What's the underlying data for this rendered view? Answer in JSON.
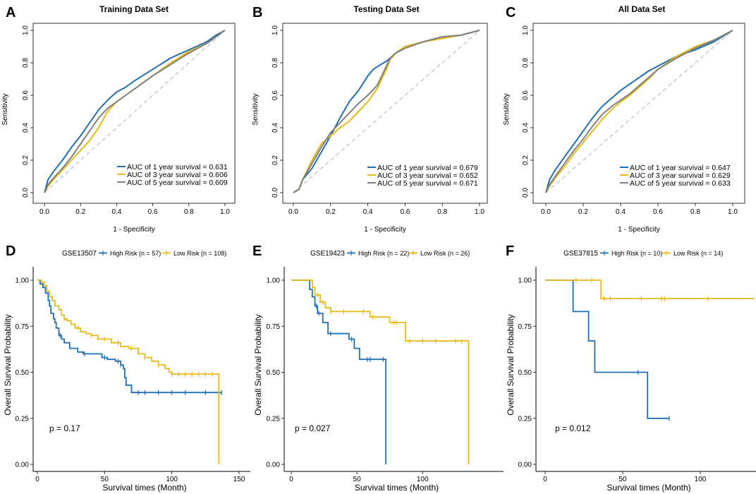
{
  "colors": {
    "blue": "#1f6fb4",
    "gold": "#e8b917",
    "gray": "#808080",
    "diag": "#c8c8c8"
  },
  "chart_data": [
    {
      "panel": "A",
      "type": "line",
      "title": "Training Data Set",
      "xlabel": "1 - Specificity",
      "ylabel": "Sensitivity",
      "xlim": [
        0,
        1
      ],
      "ylim": [
        0,
        1
      ],
      "ticks": [
        "0.0",
        "0.2",
        "0.4",
        "0.6",
        "0.8",
        "1.0"
      ],
      "legend": [
        "AUC of 1 year survival = 0.631",
        "AUC of 3 year survival = 0.606",
        "AUC of 5 year survival = 0.609"
      ],
      "series": [
        {
          "name": "1 year",
          "color": "blue",
          "x": [
            0,
            0.02,
            0.05,
            0.1,
            0.15,
            0.2,
            0.25,
            0.3,
            0.35,
            0.4,
            0.45,
            0.5,
            0.6,
            0.7,
            0.8,
            0.9,
            0.95,
            1
          ],
          "y": [
            0,
            0.08,
            0.13,
            0.2,
            0.28,
            0.35,
            0.43,
            0.51,
            0.57,
            0.62,
            0.65,
            0.69,
            0.76,
            0.83,
            0.88,
            0.93,
            0.97,
            1
          ]
        },
        {
          "name": "3 year",
          "color": "gold",
          "x": [
            0,
            0.02,
            0.05,
            0.1,
            0.15,
            0.2,
            0.25,
            0.3,
            0.35,
            0.4,
            0.45,
            0.5,
            0.6,
            0.7,
            0.8,
            0.9,
            0.95,
            1
          ],
          "y": [
            0,
            0.04,
            0.08,
            0.14,
            0.2,
            0.26,
            0.32,
            0.4,
            0.5,
            0.56,
            0.6,
            0.64,
            0.72,
            0.8,
            0.87,
            0.92,
            0.96,
            1
          ]
        },
        {
          "name": "5 year",
          "color": "gray",
          "x": [
            0,
            0.02,
            0.05,
            0.1,
            0.15,
            0.2,
            0.25,
            0.3,
            0.35,
            0.4,
            0.45,
            0.5,
            0.6,
            0.7,
            0.8,
            0.9,
            0.95,
            1
          ],
          "y": [
            0,
            0.05,
            0.09,
            0.15,
            0.22,
            0.3,
            0.38,
            0.46,
            0.52,
            0.56,
            0.6,
            0.64,
            0.72,
            0.79,
            0.86,
            0.92,
            0.96,
            1
          ]
        }
      ]
    },
    {
      "panel": "B",
      "type": "line",
      "title": "Testing Data Set",
      "xlabel": "1 - Specificity",
      "ylabel": "Sensitivity",
      "xlim": [
        0,
        1
      ],
      "ylim": [
        0,
        1
      ],
      "ticks": [
        "0.0",
        "0.2",
        "0.4",
        "0.6",
        "0.8",
        "1.0"
      ],
      "legend": [
        "AUC of 1 year survival = 0.679",
        "AUC of 3 year survival = 0.652",
        "AUC of 5 year survival = 0.671"
      ],
      "series": [
        {
          "name": "1 year",
          "color": "blue",
          "x": [
            0,
            0.03,
            0.05,
            0.1,
            0.15,
            0.2,
            0.25,
            0.3,
            0.35,
            0.4,
            0.43,
            0.47,
            0.5,
            0.55,
            0.6,
            0.7,
            0.8,
            0.9,
            1
          ],
          "y": [
            0,
            0.02,
            0.08,
            0.15,
            0.25,
            0.35,
            0.46,
            0.56,
            0.63,
            0.72,
            0.76,
            0.79,
            0.81,
            0.86,
            0.9,
            0.93,
            0.96,
            0.97,
            1
          ]
        },
        {
          "name": "3 year",
          "color": "gold",
          "x": [
            0,
            0.03,
            0.05,
            0.1,
            0.15,
            0.2,
            0.25,
            0.3,
            0.35,
            0.4,
            0.45,
            0.5,
            0.52,
            0.55,
            0.6,
            0.7,
            0.8,
            0.9,
            1
          ],
          "y": [
            0,
            0.02,
            0.08,
            0.2,
            0.3,
            0.35,
            0.4,
            0.44,
            0.5,
            0.56,
            0.64,
            0.76,
            0.82,
            0.86,
            0.9,
            0.93,
            0.95,
            0.97,
            1
          ]
        },
        {
          "name": "5 year",
          "color": "gray",
          "x": [
            0,
            0.03,
            0.05,
            0.1,
            0.15,
            0.2,
            0.25,
            0.3,
            0.35,
            0.4,
            0.45,
            0.5,
            0.52,
            0.55,
            0.6,
            0.7,
            0.8,
            0.9,
            1
          ],
          "y": [
            0,
            0.02,
            0.08,
            0.18,
            0.28,
            0.37,
            0.43,
            0.49,
            0.55,
            0.6,
            0.66,
            0.78,
            0.83,
            0.86,
            0.89,
            0.93,
            0.96,
            0.97,
            1
          ]
        }
      ]
    },
    {
      "panel": "C",
      "type": "line",
      "title": "All Data Set",
      "xlabel": "1 - Specificity",
      "ylabel": "Sensitivity",
      "xlim": [
        0,
        1
      ],
      "ylim": [
        0,
        1
      ],
      "ticks": [
        "0.0",
        "0.2",
        "0.4",
        "0.6",
        "0.8",
        "1.0"
      ],
      "legend": [
        "AUC of 1 year survival = 0.647",
        "AUC of 3 year survival = 0.629",
        "AUC of 5 year survival = 0.633"
      ],
      "series": [
        {
          "name": "1 year",
          "color": "blue",
          "x": [
            0,
            0.02,
            0.05,
            0.1,
            0.15,
            0.2,
            0.25,
            0.3,
            0.35,
            0.4,
            0.45,
            0.5,
            0.55,
            0.6,
            0.7,
            0.8,
            0.9,
            1
          ],
          "y": [
            0,
            0.08,
            0.14,
            0.22,
            0.3,
            0.38,
            0.46,
            0.53,
            0.58,
            0.63,
            0.67,
            0.71,
            0.75,
            0.78,
            0.84,
            0.88,
            0.93,
            1
          ]
        },
        {
          "name": "3 year",
          "color": "gold",
          "x": [
            0,
            0.02,
            0.05,
            0.1,
            0.15,
            0.2,
            0.25,
            0.3,
            0.35,
            0.4,
            0.45,
            0.5,
            0.55,
            0.6,
            0.7,
            0.8,
            0.9,
            1
          ],
          "y": [
            0,
            0.04,
            0.09,
            0.16,
            0.24,
            0.31,
            0.38,
            0.45,
            0.51,
            0.56,
            0.6,
            0.65,
            0.7,
            0.76,
            0.84,
            0.9,
            0.94,
            1
          ]
        },
        {
          "name": "5 year",
          "color": "gray",
          "x": [
            0,
            0.02,
            0.05,
            0.1,
            0.15,
            0.2,
            0.25,
            0.3,
            0.35,
            0.4,
            0.45,
            0.5,
            0.55,
            0.6,
            0.7,
            0.8,
            0.9,
            1
          ],
          "y": [
            0,
            0.05,
            0.1,
            0.18,
            0.26,
            0.33,
            0.41,
            0.48,
            0.53,
            0.57,
            0.61,
            0.66,
            0.71,
            0.76,
            0.83,
            0.89,
            0.94,
            1
          ]
        }
      ]
    },
    {
      "panel": "D",
      "type": "line",
      "subtype": "kaplan-meier",
      "legend_title": "GSE13507",
      "xlabel": "Survival times (Month)",
      "ylabel": "Overall Survival Probability",
      "xlim": [
        0,
        150
      ],
      "ylim": [
        0,
        1
      ],
      "xticks": [
        0,
        50,
        100,
        150
      ],
      "yticks": [
        "0.00",
        "0.25",
        "0.50",
        "0.75",
        "1.00"
      ],
      "p_value": "p = 0.17",
      "series": [
        {
          "name": "High Risk (n = 57)",
          "color": "blue",
          "x": [
            0,
            2,
            4,
            6,
            8,
            9,
            10,
            12,
            13,
            14,
            16,
            18,
            20,
            24,
            30,
            34,
            40,
            48,
            52,
            58,
            62,
            64,
            65,
            66,
            70,
            137
          ],
          "y": [
            1,
            0.98,
            0.96,
            0.93,
            0.89,
            0.86,
            0.82,
            0.79,
            0.77,
            0.74,
            0.7,
            0.68,
            0.66,
            0.63,
            0.61,
            0.6,
            0.6,
            0.58,
            0.57,
            0.56,
            0.54,
            0.52,
            0.47,
            0.43,
            0.39,
            0.39
          ],
          "censor_x": [
            17,
            35,
            50,
            60,
            62,
            75,
            80,
            90,
            100,
            110,
            125,
            135,
            137
          ]
        },
        {
          "name": "Low Risk (n = 108)",
          "color": "gold",
          "x": [
            0,
            3,
            5,
            7,
            9,
            11,
            13,
            16,
            18,
            20,
            22,
            25,
            28,
            32,
            36,
            40,
            45,
            55,
            62,
            68,
            75,
            80,
            85,
            90,
            95,
            98,
            100,
            130,
            134,
            135
          ],
          "y": [
            1,
            0.99,
            0.97,
            0.94,
            0.91,
            0.89,
            0.86,
            0.84,
            0.81,
            0.79,
            0.78,
            0.76,
            0.74,
            0.72,
            0.71,
            0.7,
            0.68,
            0.66,
            0.64,
            0.63,
            0.6,
            0.58,
            0.56,
            0.54,
            0.52,
            0.5,
            0.49,
            0.49,
            0.49,
            0
          ],
          "censor_x": [
            20,
            30,
            40,
            50,
            60,
            70,
            80,
            90,
            100,
            105,
            110,
            115,
            120,
            125,
            130
          ]
        }
      ]
    },
    {
      "panel": "E",
      "type": "line",
      "subtype": "kaplan-meier",
      "legend_title": "GSE19423",
      "xlabel": "Survival times (Month)",
      "ylabel": "Overall Survival Probability",
      "xlim": [
        0,
        145
      ],
      "ylim": [
        0,
        1
      ],
      "xticks": [
        0,
        50,
        100
      ],
      "yticks": [
        "0.00",
        "0.25",
        "0.50",
        "0.75",
        "1.00"
      ],
      "p_value": "p = 0.027",
      "series": [
        {
          "name": "High Risk (n = 22)",
          "color": "blue",
          "x": [
            0,
            14,
            16,
            18,
            20,
            24,
            28,
            44,
            48,
            52,
            72
          ],
          "y": [
            1,
            0.95,
            0.91,
            0.86,
            0.82,
            0.77,
            0.71,
            0.68,
            0.63,
            0.57,
            0
          ],
          "censor_x": [
            19,
            21,
            30,
            46,
            58,
            60,
            70
          ]
        },
        {
          "name": "Low Risk (n = 26)",
          "color": "gold",
          "x": [
            0,
            16,
            18,
            22,
            26,
            30,
            60,
            75,
            87,
            135
          ],
          "y": [
            1,
            0.96,
            0.92,
            0.88,
            0.85,
            0.83,
            0.8,
            0.77,
            0.67,
            0
          ],
          "censor_x": [
            20,
            24,
            30,
            40,
            55,
            62,
            78,
            80,
            90,
            100,
            110,
            125,
            130
          ]
        }
      ]
    },
    {
      "panel": "F",
      "type": "line",
      "subtype": "kaplan-meier",
      "legend_title": "GSE37815",
      "xlabel": "Survival times (Month)",
      "ylabel": "Overall Survival Probability",
      "xlim": [
        0,
        135
      ],
      "ylim": [
        0,
        1
      ],
      "xticks": [
        0,
        50,
        100
      ],
      "yticks": [
        "0.00",
        "0.25",
        "0.50",
        "0.75",
        "1.00"
      ],
      "p_value": "p = 0.012",
      "series": [
        {
          "name": "High Risk (n = 10)",
          "color": "blue",
          "x": [
            0,
            18,
            28,
            32,
            66,
            80
          ],
          "y": [
            1,
            0.83,
            0.67,
            0.5,
            0.25,
            0.25
          ],
          "censor_x": [
            60,
            80
          ]
        },
        {
          "name": "Low Risk (n = 14)",
          "color": "gold",
          "x": [
            0,
            36,
            135
          ],
          "y": [
            1,
            0.9,
            0.9
          ],
          "censor_x": [
            20,
            30,
            38,
            42,
            62,
            75,
            77,
            105
          ]
        }
      ]
    }
  ]
}
